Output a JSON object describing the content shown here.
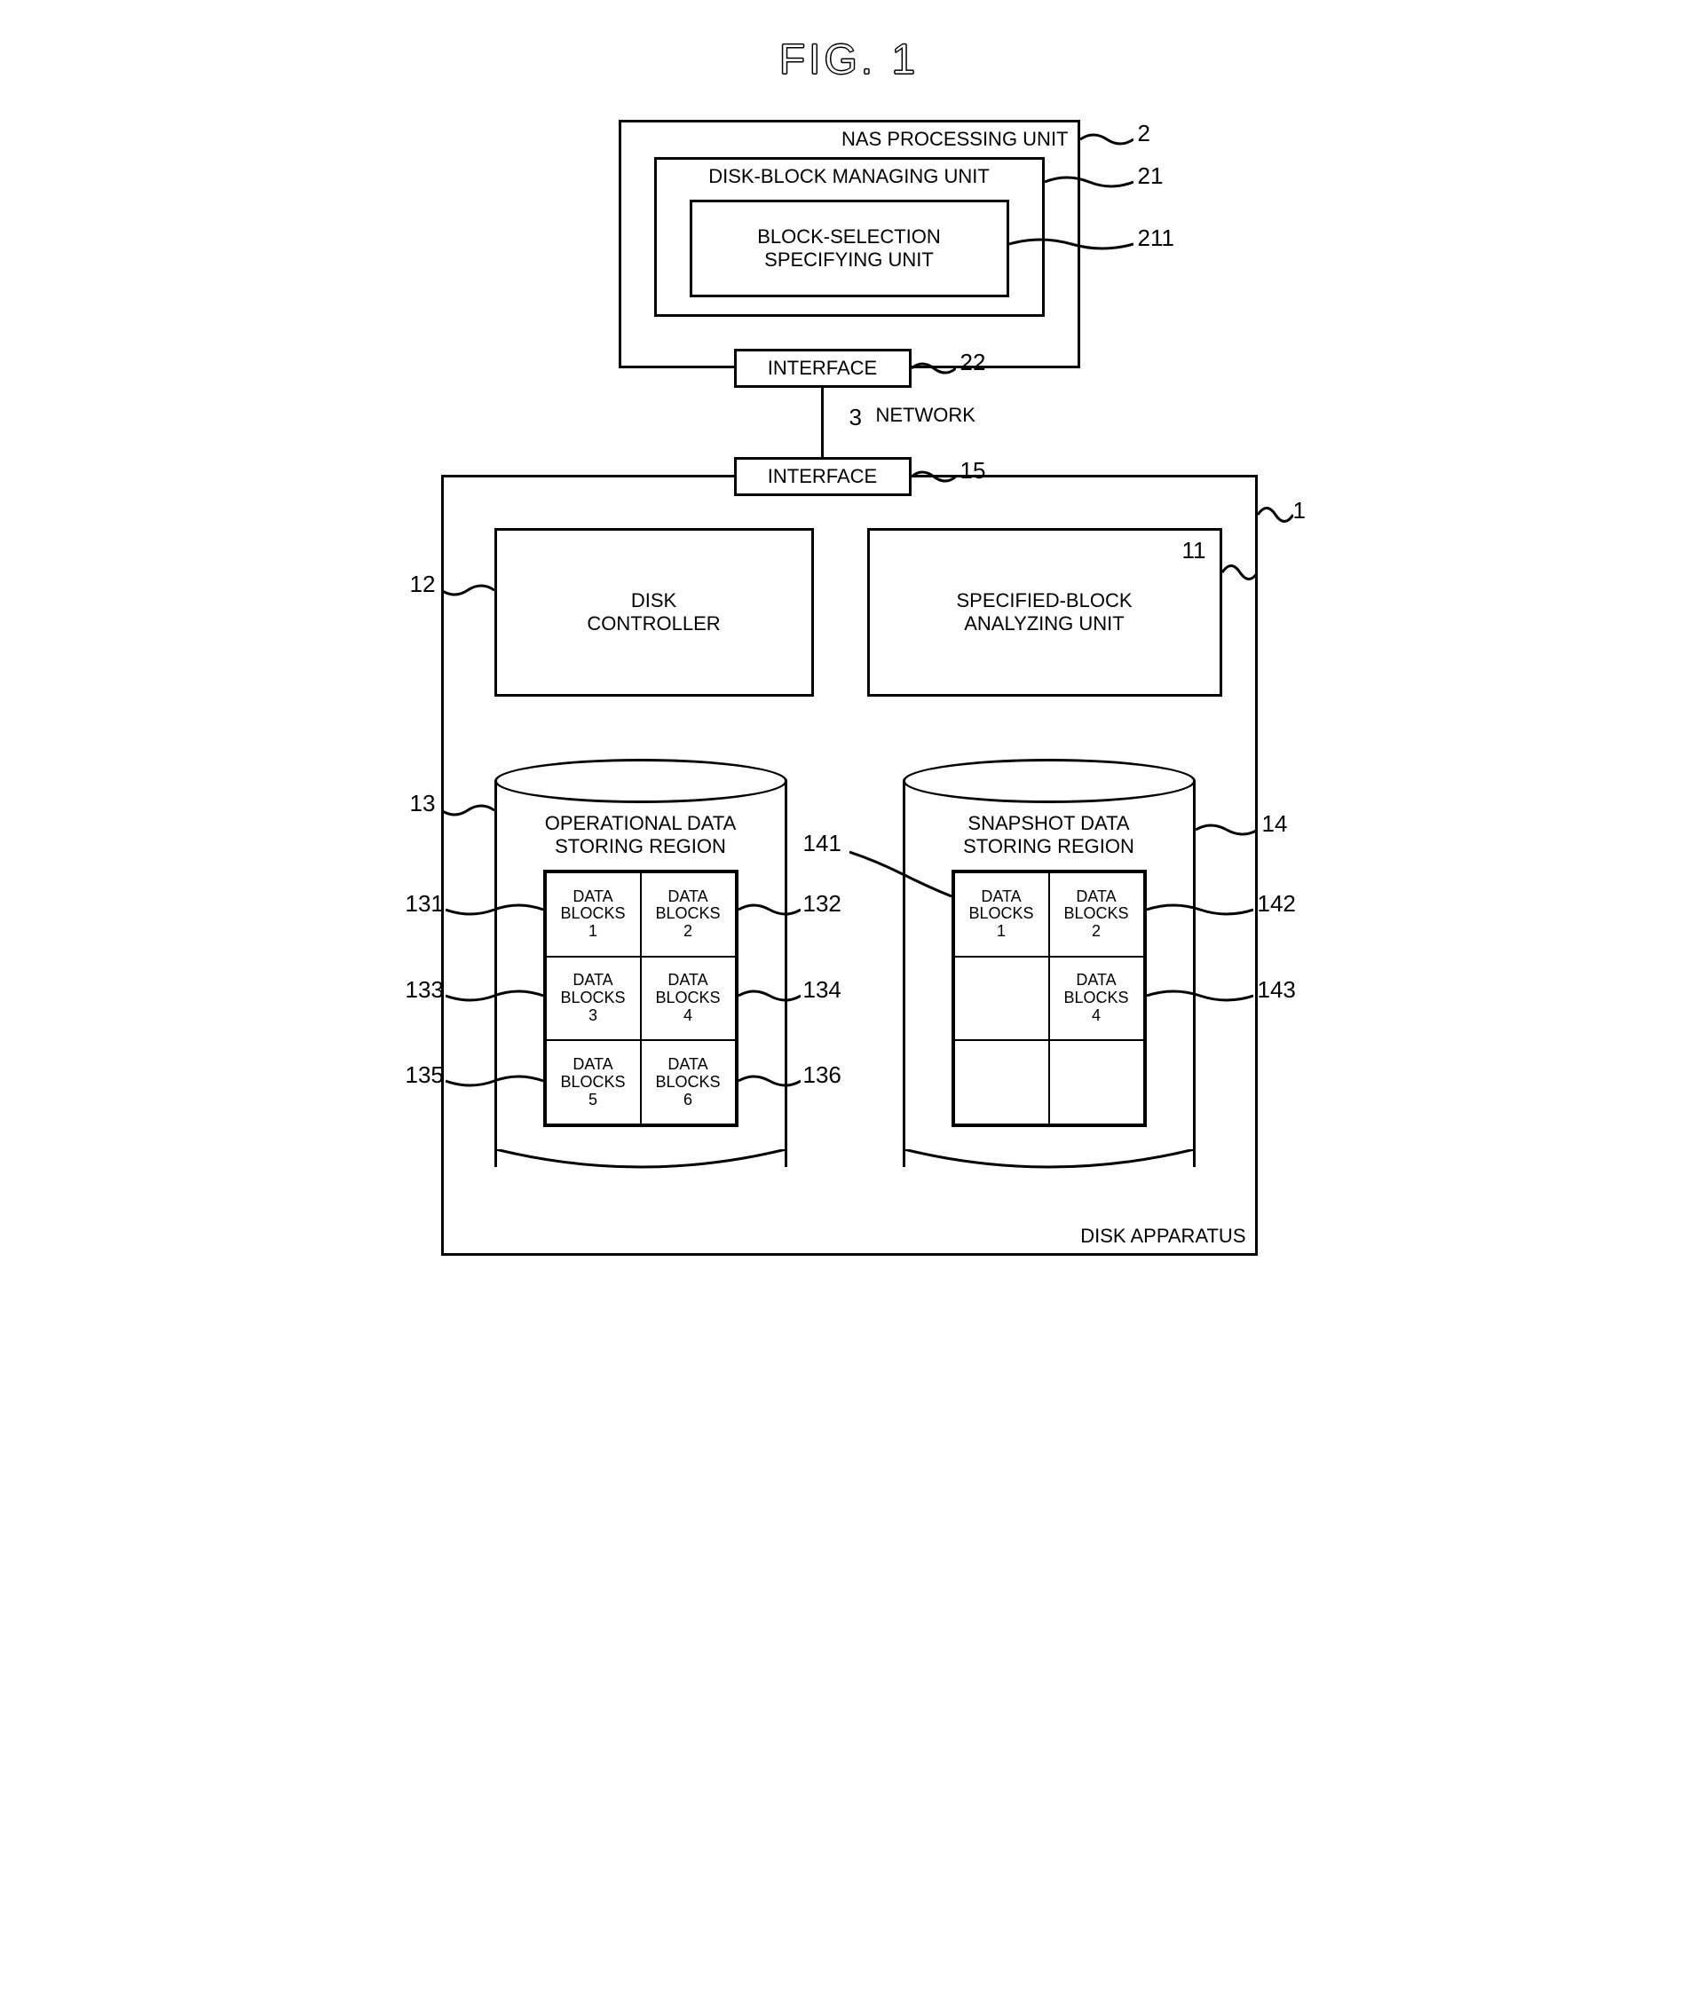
{
  "figure_title": "FIG. 1",
  "nas": {
    "title": "NAS PROCESSING UNIT",
    "ref": "2",
    "disk_block_mgr": {
      "title": "DISK-BLOCK MANAGING UNIT",
      "ref": "21",
      "block_sel": {
        "title": "BLOCK-SELECTION SPECIFYING UNIT",
        "ref": "211"
      }
    },
    "interface": {
      "label": "INTERFACE",
      "ref": "22"
    }
  },
  "network": {
    "label": "NETWORK",
    "ref": "3"
  },
  "disk_app": {
    "title": "DISK APPARATUS",
    "ref": "1",
    "interface": {
      "label": "INTERFACE",
      "ref": "15"
    },
    "controller": {
      "label": "DISK CONTROLLER",
      "ref": "12"
    },
    "analyzer": {
      "label": "SPECIFIED-BLOCK ANALYZING UNIT",
      "ref": "11"
    },
    "op_region": {
      "title": "OPERATIONAL DATA STORING REGION",
      "ref": "13",
      "blocks": [
        {
          "label": "DATA BLOCKS 1",
          "ref": "131"
        },
        {
          "label": "DATA BLOCKS 2",
          "ref": "132"
        },
        {
          "label": "DATA BLOCKS 3",
          "ref": "133"
        },
        {
          "label": "DATA BLOCKS 4",
          "ref": "134"
        },
        {
          "label": "DATA BLOCKS 5",
          "ref": "135"
        },
        {
          "label": "DATA BLOCKS 6",
          "ref": "136"
        }
      ]
    },
    "snap_region": {
      "title": "SNAPSHOT DATA STORING REGION",
      "ref": "14",
      "blocks": [
        {
          "label": "DATA BLOCKS 1",
          "ref": "141"
        },
        {
          "label": "DATA BLOCKS 2",
          "ref": "142"
        },
        {
          "label": "",
          "ref": ""
        },
        {
          "label": "DATA BLOCKS 4",
          "ref": "143"
        },
        {
          "label": "",
          "ref": ""
        },
        {
          "label": "",
          "ref": ""
        }
      ]
    }
  },
  "layout": {
    "stroke": "#000000",
    "bg": "#ffffff",
    "stroke_width": 3
  }
}
